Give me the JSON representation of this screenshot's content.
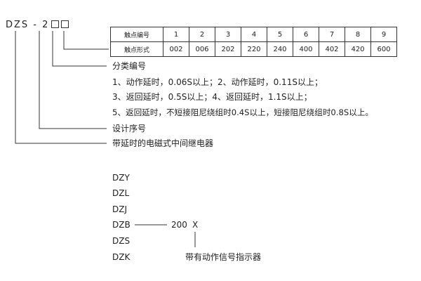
{
  "model_code": {
    "prefix": "DZS - 2",
    "slot_count": 2
  },
  "table": {
    "row_headers": [
      "触点编号",
      "触点形式"
    ],
    "numbers": [
      "1",
      "2",
      "3",
      "4",
      "5",
      "6",
      "7",
      "8",
      "9"
    ],
    "forms": [
      "002",
      "006",
      "202",
      "220",
      "240",
      "400",
      "402",
      "420",
      "600"
    ]
  },
  "labels": {
    "classification": "分类编号",
    "class_line1": "1、动作延时，0.06S以上；2、动作延时，0.11S以上；",
    "class_line2": "3、返回延时，0.5S以上；4、返回延时，1.1S以上；",
    "class_line3": "5、返回延时，不短接阻尼绕组时0.4S以上，短接阻尼绕组时0.8S以上。",
    "design_serial": "设计序号",
    "relay_type": "带延时的电磁式中间继电器"
  },
  "series": {
    "models": [
      "DZY",
      "DZL",
      "DZJ",
      "DZB",
      "DZS",
      "DZK"
    ],
    "suffix_number": "200",
    "suffix_letter": "X",
    "suffix_note": "带有动作信号指示器"
  }
}
